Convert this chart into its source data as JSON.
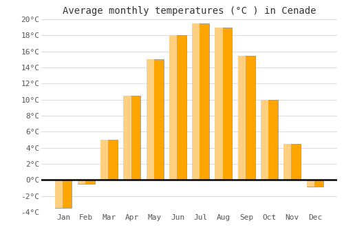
{
  "title": "Average monthly temperatures (°C ) in Cenade",
  "months": [
    "Jan",
    "Feb",
    "Mar",
    "Apr",
    "May",
    "Jun",
    "Jul",
    "Aug",
    "Sep",
    "Oct",
    "Nov",
    "Dec"
  ],
  "values": [
    -3.5,
    -0.5,
    5.0,
    10.5,
    15.0,
    18.0,
    19.5,
    19.0,
    15.5,
    10.0,
    4.5,
    -0.8
  ],
  "bar_color_top": "#FFC04C",
  "bar_color_bot": "#F5A800",
  "bar_edge_color": "#888888",
  "ylim": [
    -4,
    20
  ],
  "yticks": [
    -4,
    -2,
    0,
    2,
    4,
    6,
    8,
    10,
    12,
    14,
    16,
    18,
    20
  ],
  "background_color": "#ffffff",
  "plot_bg_color": "#ffffff",
  "grid_color": "#dddddd",
  "title_fontsize": 10,
  "tick_fontsize": 8,
  "bar_width": 0.75
}
